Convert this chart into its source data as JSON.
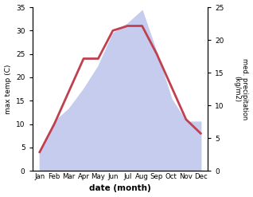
{
  "months": [
    "Jan",
    "Feb",
    "Mar",
    "Apr",
    "May",
    "Jun",
    "Jul",
    "Aug",
    "Sep",
    "Oct",
    "Nov",
    "Dec"
  ],
  "x": [
    1,
    2,
    3,
    4,
    5,
    6,
    7,
    8,
    9,
    10,
    11,
    12
  ],
  "temp": [
    4,
    10,
    17,
    24,
    24,
    30,
    31,
    31,
    25,
    18,
    11,
    8
  ],
  "precip_scaled": [
    4.2,
    10.5,
    13.3,
    17.5,
    22.4,
    29.4,
    31.5,
    34.3,
    25.2,
    15.4,
    10.5,
    10.5
  ],
  "temp_color": "#c04050",
  "precip_fill_color": "#c5ccee",
  "xlabel": "date (month)",
  "ylabel_left": "max temp (C)",
  "ylabel_right": "med. precipitation\n(kg/m2)",
  "ylim_left": [
    0,
    35
  ],
  "ylim_right": [
    0,
    25
  ],
  "yticks_left": [
    0,
    5,
    10,
    15,
    20,
    25,
    30,
    35
  ],
  "yticks_right": [
    0,
    5,
    10,
    15,
    20,
    25
  ],
  "bg_color": "#ffffff",
  "line_width": 2.0
}
